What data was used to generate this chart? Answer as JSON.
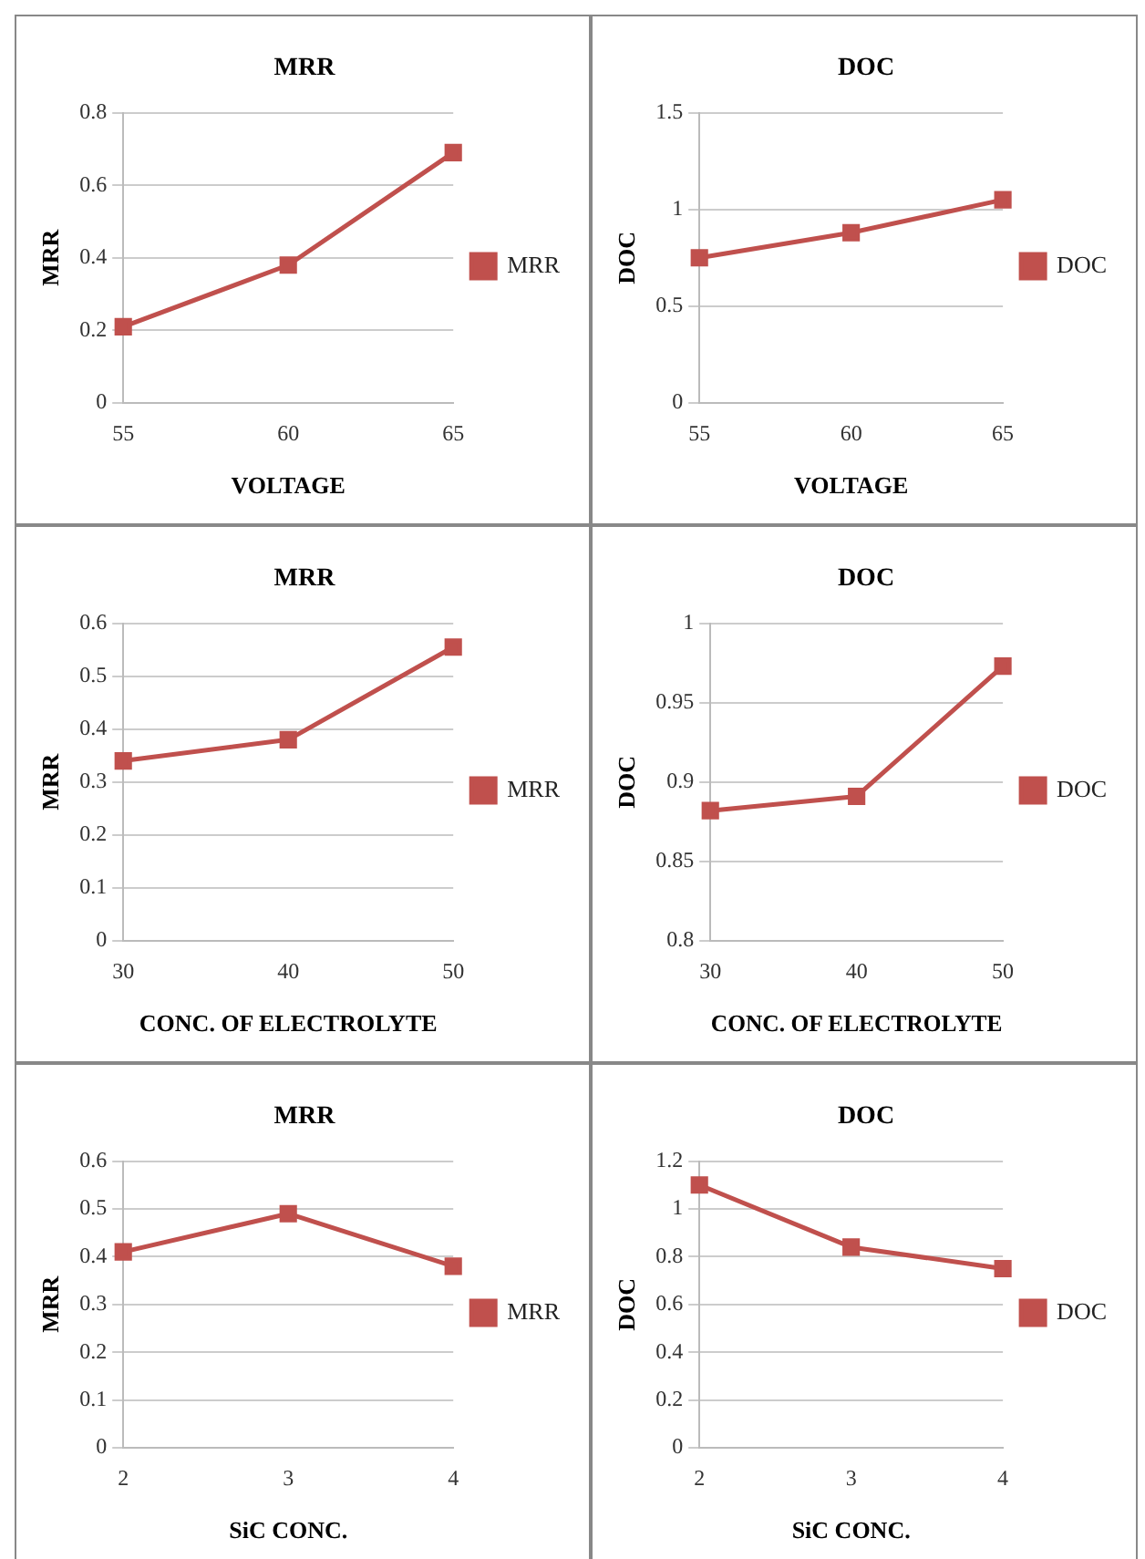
{
  "chart_data": [
    {
      "type": "line",
      "title": "MRR",
      "xlabel": "VOLTAGE",
      "ylabel": "MRR",
      "categories": [
        "55",
        "60",
        "65"
      ],
      "series": [
        {
          "name": "MRR",
          "color": "#c0504d",
          "values": [
            0.21,
            0.38,
            0.69
          ]
        }
      ],
      "ylim": [
        0,
        0.8
      ],
      "yticks": [
        0,
        0.2,
        0.4,
        0.6,
        0.8
      ],
      "grid": "y",
      "legend": "right",
      "marker": "square"
    },
    {
      "type": "line",
      "title": "DOC",
      "xlabel": "VOLTAGE",
      "ylabel": "DOC",
      "categories": [
        "55",
        "60",
        "65"
      ],
      "series": [
        {
          "name": "DOC",
          "color": "#c0504d",
          "values": [
            0.75,
            0.88,
            1.05
          ]
        }
      ],
      "ylim": [
        0,
        1.5
      ],
      "yticks": [
        0,
        0.5,
        1,
        1.5
      ],
      "grid": "y",
      "legend": "right",
      "marker": "square"
    },
    {
      "type": "line",
      "title": "MRR",
      "xlabel": "CONC. OF ELECTROLYTE",
      "ylabel": "MRR",
      "categories": [
        "30",
        "40",
        "50"
      ],
      "series": [
        {
          "name": "MRR",
          "color": "#c0504d",
          "values": [
            0.34,
            0.38,
            0.555
          ]
        }
      ],
      "ylim": [
        0,
        0.6
      ],
      "yticks": [
        0,
        0.1,
        0.2,
        0.3,
        0.4,
        0.5,
        0.6
      ],
      "grid": "y",
      "legend": "right",
      "marker": "square"
    },
    {
      "type": "line",
      "title": "DOC",
      "xlabel": "CONC. OF ELECTROLYTE",
      "ylabel": "DOC",
      "categories": [
        "30",
        "40",
        "50"
      ],
      "series": [
        {
          "name": "DOC",
          "color": "#c0504d",
          "values": [
            0.882,
            0.891,
            0.973
          ]
        }
      ],
      "ylim": [
        0.8,
        1
      ],
      "yticks": [
        0.8,
        0.85,
        0.9,
        0.95,
        1
      ],
      "grid": "y",
      "legend": "right",
      "marker": "square"
    },
    {
      "type": "line",
      "title": "MRR",
      "xlabel": "SiC CONC.",
      "ylabel": "MRR",
      "categories": [
        "2",
        "3",
        "4"
      ],
      "series": [
        {
          "name": "MRR",
          "color": "#c0504d",
          "values": [
            0.41,
            0.49,
            0.38
          ]
        }
      ],
      "ylim": [
        0,
        0.6
      ],
      "yticks": [
        0,
        0.1,
        0.2,
        0.3,
        0.4,
        0.5,
        0.6
      ],
      "grid": "y",
      "legend": "right",
      "marker": "square"
    },
    {
      "type": "line",
      "title": "DOC",
      "xlabel": "SiC CONC.",
      "ylabel": "DOC",
      "categories": [
        "2",
        "3",
        "4"
      ],
      "series": [
        {
          "name": "DOC",
          "color": "#c0504d",
          "values": [
            1.1,
            0.84,
            0.75
          ]
        }
      ],
      "ylim": [
        0,
        1.2
      ],
      "yticks": [
        0,
        0.2,
        0.4,
        0.6,
        0.8,
        1,
        1.2
      ],
      "grid": "y",
      "legend": "right",
      "marker": "square"
    }
  ]
}
